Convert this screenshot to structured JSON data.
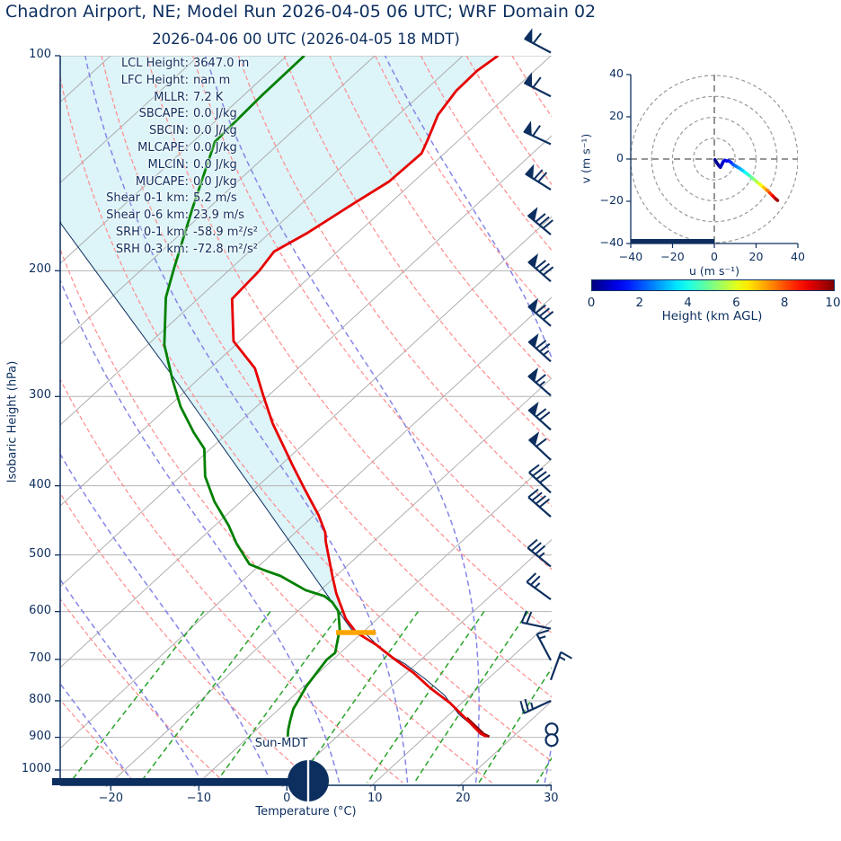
{
  "title": "Chadron Airport, NE; Model Run 2026-04-05 06 UTC; WRF Domain 02",
  "subtitle": "2026-04-06 00 UTC  (2026-04-05 18 MDT)",
  "colors": {
    "navy": "#0d2f5f",
    "temperature": "#e60000",
    "temperature_surface": "#8b0000",
    "dewpoint": "#018001",
    "parcel": "#0d2f5f",
    "dry_adiabat": "#ff8a8a",
    "moist_adiabat": "#8585e8",
    "mixing_ratio": "#28a228",
    "isotherm": "#a8a8a8",
    "grid": "#b4b4b4",
    "shade_fill": "#ddf4f8",
    "lcl_marker": "#ffa500",
    "hodo_ring": "#999999"
  },
  "skewt": {
    "ylabel": "Isobaric Height (hPa)",
    "xlabel": "Temperature (°C)",
    "pressure_ticks": [
      100,
      200,
      300,
      400,
      500,
      600,
      700,
      800,
      900,
      1000
    ],
    "temp_ticks": [
      {
        "v": -20,
        "label": "−20"
      },
      {
        "v": -10,
        "label": "−10"
      },
      {
        "v": 0,
        "label": "0"
      },
      {
        "v": 10,
        "label": "10"
      },
      {
        "v": 20,
        "label": "20"
      },
      {
        "v": 30,
        "label": "30"
      }
    ],
    "stats": [
      {
        "label": "LCL Height:",
        "value": "3647.0 m"
      },
      {
        "label": "LFC Height:",
        "value": "nan m"
      },
      {
        "label": "MLLR:",
        "value": "7.2 K"
      },
      {
        "label": "SBCAPE:",
        "value": "0.0 J/kg"
      },
      {
        "label": "SBCIN:",
        "value": "0.0 J/kg"
      },
      {
        "label": "MLCAPE:",
        "value": "0.0 J/kg"
      },
      {
        "label": "MLCIN:",
        "value": "0.0 J/kg"
      },
      {
        "label": "MUCAPE:",
        "value": "0.0 J/kg"
      },
      {
        "label": "Shear 0-1 km:",
        "value": "5.2 m/s"
      },
      {
        "label": "Shear 0-6 km:",
        "value": "23.9 m/s"
      },
      {
        "label": "SRH 0-1 km:",
        "value": "-58.9 m²/s²"
      },
      {
        "label": "SRH 0-3 km:",
        "value": "-72.8 m²/s²"
      }
    ],
    "sun_label": "Sun-MDT"
  },
  "hodograph": {
    "xlabel": "u (m s⁻¹)",
    "ylabel": "v (m s⁻¹)",
    "tick_values": [
      -40,
      -20,
      0,
      20,
      40
    ],
    "tick_labels": [
      "−40",
      "−20",
      "0",
      "20",
      "40"
    ],
    "ring_radii": [
      10,
      20,
      30,
      40
    ]
  },
  "colorbar": {
    "label": "Height (km AGL)",
    "tick_labels": [
      "0",
      "2",
      "4",
      "6",
      "8",
      "10"
    ],
    "min": 0,
    "max": 10
  },
  "chart_data": {
    "type": "skewt-log-p",
    "pressure_range_hPa": [
      100,
      1042
    ],
    "temperature_range_C": [
      -25,
      30
    ],
    "temperature_profile": [
      [
        100,
        -66
      ],
      [
        105,
        -66.5
      ],
      [
        112,
        -66.4
      ],
      [
        121,
        -65.5
      ],
      [
        131,
        -63.6
      ],
      [
        137,
        -62.6
      ],
      [
        150,
        -62.8
      ],
      [
        161,
        -64.1
      ],
      [
        177,
        -65.7
      ],
      [
        188,
        -67.2
      ],
      [
        200,
        -66.5
      ],
      [
        219,
        -66.1
      ],
      [
        251,
        -60.7
      ],
      [
        274,
        -54.9
      ],
      [
        299,
        -50.6
      ],
      [
        327,
        -46.1
      ],
      [
        360,
        -40.8
      ],
      [
        374,
        -38.7
      ],
      [
        403,
        -34.5
      ],
      [
        421,
        -32
      ],
      [
        439,
        -29.6
      ],
      [
        465,
        -26.6
      ],
      [
        479,
        -25.4
      ],
      [
        534,
        -20.5
      ],
      [
        566,
        -17.8
      ],
      [
        614,
        -13.6
      ],
      [
        641,
        -10.8
      ],
      [
        668,
        -6.9
      ],
      [
        700,
        -3
      ],
      [
        732,
        0.9
      ],
      [
        768,
        4.6
      ],
      [
        806,
        8.7
      ],
      [
        853,
        12.9
      ],
      [
        890,
        16
      ],
      [
        898,
        17
      ]
    ],
    "surface_temperature_overlay": [
      [
        845,
        12.4
      ],
      [
        890,
        16.3
      ],
      [
        898,
        17.3
      ]
    ],
    "dewpoint_profile": [
      [
        100,
        -88
      ],
      [
        114,
        -87.9
      ],
      [
        132,
        -87.5
      ],
      [
        163,
        -81.9
      ],
      [
        199,
        -76.4
      ],
      [
        218,
        -73.8
      ],
      [
        254,
        -68.1
      ],
      [
        284,
        -62.9
      ],
      [
        310,
        -58.6
      ],
      [
        337,
        -53.9
      ],
      [
        355,
        -50.7
      ],
      [
        388,
        -47.2
      ],
      [
        421,
        -43
      ],
      [
        455,
        -38.4
      ],
      [
        482,
        -35.3
      ],
      [
        515,
        -31.3
      ],
      [
        525,
        -28.9
      ],
      [
        535,
        -26.3
      ],
      [
        560,
        -21.7
      ],
      [
        571,
        -18.8
      ],
      [
        582,
        -17.2
      ],
      [
        599,
        -15.4
      ],
      [
        635,
        -13
      ],
      [
        685,
        -10.6
      ],
      [
        700,
        -10.7
      ],
      [
        732,
        -10.2
      ],
      [
        764,
        -9.7
      ],
      [
        798,
        -8.9
      ],
      [
        821,
        -8.4
      ],
      [
        853,
        -7.3
      ],
      [
        878,
        -6.4
      ],
      [
        898,
        -5.6
      ]
    ],
    "parcel_profile": [
      [
        898,
        17
      ],
      [
        870,
        14.3
      ],
      [
        836,
        11.1
      ],
      [
        786,
        7.1
      ],
      [
        745,
        2.8
      ],
      [
        710,
        -1.3
      ],
      [
        684,
        -5.1
      ],
      [
        644,
        -9.5
      ],
      [
        642,
        -11
      ],
      [
        424,
        -37.2
      ],
      [
        280,
        -63.5
      ],
      [
        172,
        -94.8
      ],
      [
        148,
        -102
      ]
    ],
    "lcl_marker": {
      "pressure": 642,
      "t_from": -13,
      "t_to": -8.5
    },
    "wind_barbs": [
      {
        "p": 99,
        "ang": 152,
        "pen": 1,
        "full": 1,
        "half": 0
      },
      {
        "p": 114,
        "ang": 153,
        "pen": 1,
        "full": 1,
        "half": 0
      },
      {
        "p": 133,
        "ang": 155,
        "pen": 1,
        "full": 1,
        "half": 0
      },
      {
        "p": 154,
        "ang": 148,
        "pen": 1,
        "full": 2,
        "half": 0
      },
      {
        "p": 178,
        "ang": 140,
        "pen": 1,
        "full": 3,
        "half": 0
      },
      {
        "p": 207,
        "ang": 139,
        "pen": 1,
        "full": 3,
        "half": 0
      },
      {
        "p": 239,
        "ang": 139,
        "pen": 1,
        "full": 3,
        "half": 0
      },
      {
        "p": 268,
        "ang": 138,
        "pen": 1,
        "full": 2,
        "half": 1
      },
      {
        "p": 299,
        "ang": 139,
        "pen": 1,
        "full": 1,
        "half": 1
      },
      {
        "p": 334,
        "ang": 138,
        "pen": 1,
        "full": 2,
        "half": 0
      },
      {
        "p": 368,
        "ang": 137,
        "pen": 1,
        "full": 1,
        "half": 0
      },
      {
        "p": 409,
        "ang": 137,
        "pen": 0,
        "full": 4,
        "half": 0
      },
      {
        "p": 442,
        "ang": 139,
        "pen": 0,
        "full": 4,
        "half": 0
      },
      {
        "p": 519,
        "ang": 141,
        "pen": 0,
        "full": 3,
        "half": 1
      },
      {
        "p": 577,
        "ang": 144,
        "pen": 0,
        "full": 2,
        "half": 1
      },
      {
        "p": 634,
        "ang": 168,
        "pen": 0,
        "full": 2,
        "half": 0
      },
      {
        "p": 702,
        "ang": 118,
        "pen": 0,
        "full": 1,
        "half": 1
      },
      {
        "p": 748,
        "ang": 70,
        "pen": 0,
        "full": 1,
        "half": 1
      },
      {
        "p": 800,
        "ang": 205,
        "pen": 0,
        "full": 2,
        "half": 1
      }
    ],
    "calm_markers_p": [
      877,
      908
    ],
    "background": {
      "isotherms_C": [
        -110,
        -100,
        -90,
        -80,
        -70,
        -60,
        -50,
        -40,
        -30,
        -20,
        -10,
        0,
        10,
        20,
        30,
        40
      ],
      "dry_adiabats_K": [
        253,
        263,
        273,
        283,
        293,
        303,
        313,
        323,
        333,
        343,
        353,
        363,
        373,
        383,
        393,
        403,
        413,
        423,
        433
      ],
      "moist_adiabats_C": [
        -52,
        -44,
        -36,
        -28,
        -20,
        -12,
        -4,
        4,
        12,
        20,
        28,
        36
      ],
      "mixing_ratios_gkg": [
        0.5,
        1,
        2,
        4,
        7,
        10,
        16,
        24
      ]
    },
    "hodograph_trace_u_v_km": [
      [
        0.3,
        -0.3,
        0
      ],
      [
        1.2,
        -1.8,
        0.15
      ],
      [
        2.2,
        -3.2,
        0.3
      ],
      [
        2.9,
        -3.9,
        0.45
      ],
      [
        3.6,
        -2.6,
        0.6
      ],
      [
        4.3,
        -1.2,
        0.75
      ],
      [
        5.1,
        -0.6,
        0.9
      ],
      [
        6,
        -0.9,
        1.1
      ],
      [
        7,
        -0.9,
        1.3
      ],
      [
        8,
        -1.6,
        1.6
      ],
      [
        9,
        -2.6,
        1.9
      ],
      [
        10.2,
        -3.3,
        2.2
      ],
      [
        11.6,
        -4.1,
        2.6
      ],
      [
        13.1,
        -5.1,
        3
      ],
      [
        14.6,
        -6.2,
        3.5
      ],
      [
        16.1,
        -7.3,
        4
      ],
      [
        17.6,
        -8.5,
        4.5
      ],
      [
        19.1,
        -9.7,
        5
      ],
      [
        20.6,
        -11,
        5.5
      ],
      [
        22.1,
        -12.2,
        6
      ],
      [
        23.6,
        -13.4,
        6.5
      ],
      [
        25.1,
        -14.7,
        7.2
      ],
      [
        26.6,
        -16.1,
        7.9
      ],
      [
        28,
        -17.5,
        8.6
      ],
      [
        29.4,
        -18.9,
        9.3
      ],
      [
        30.3,
        -19.6,
        10
      ]
    ]
  }
}
